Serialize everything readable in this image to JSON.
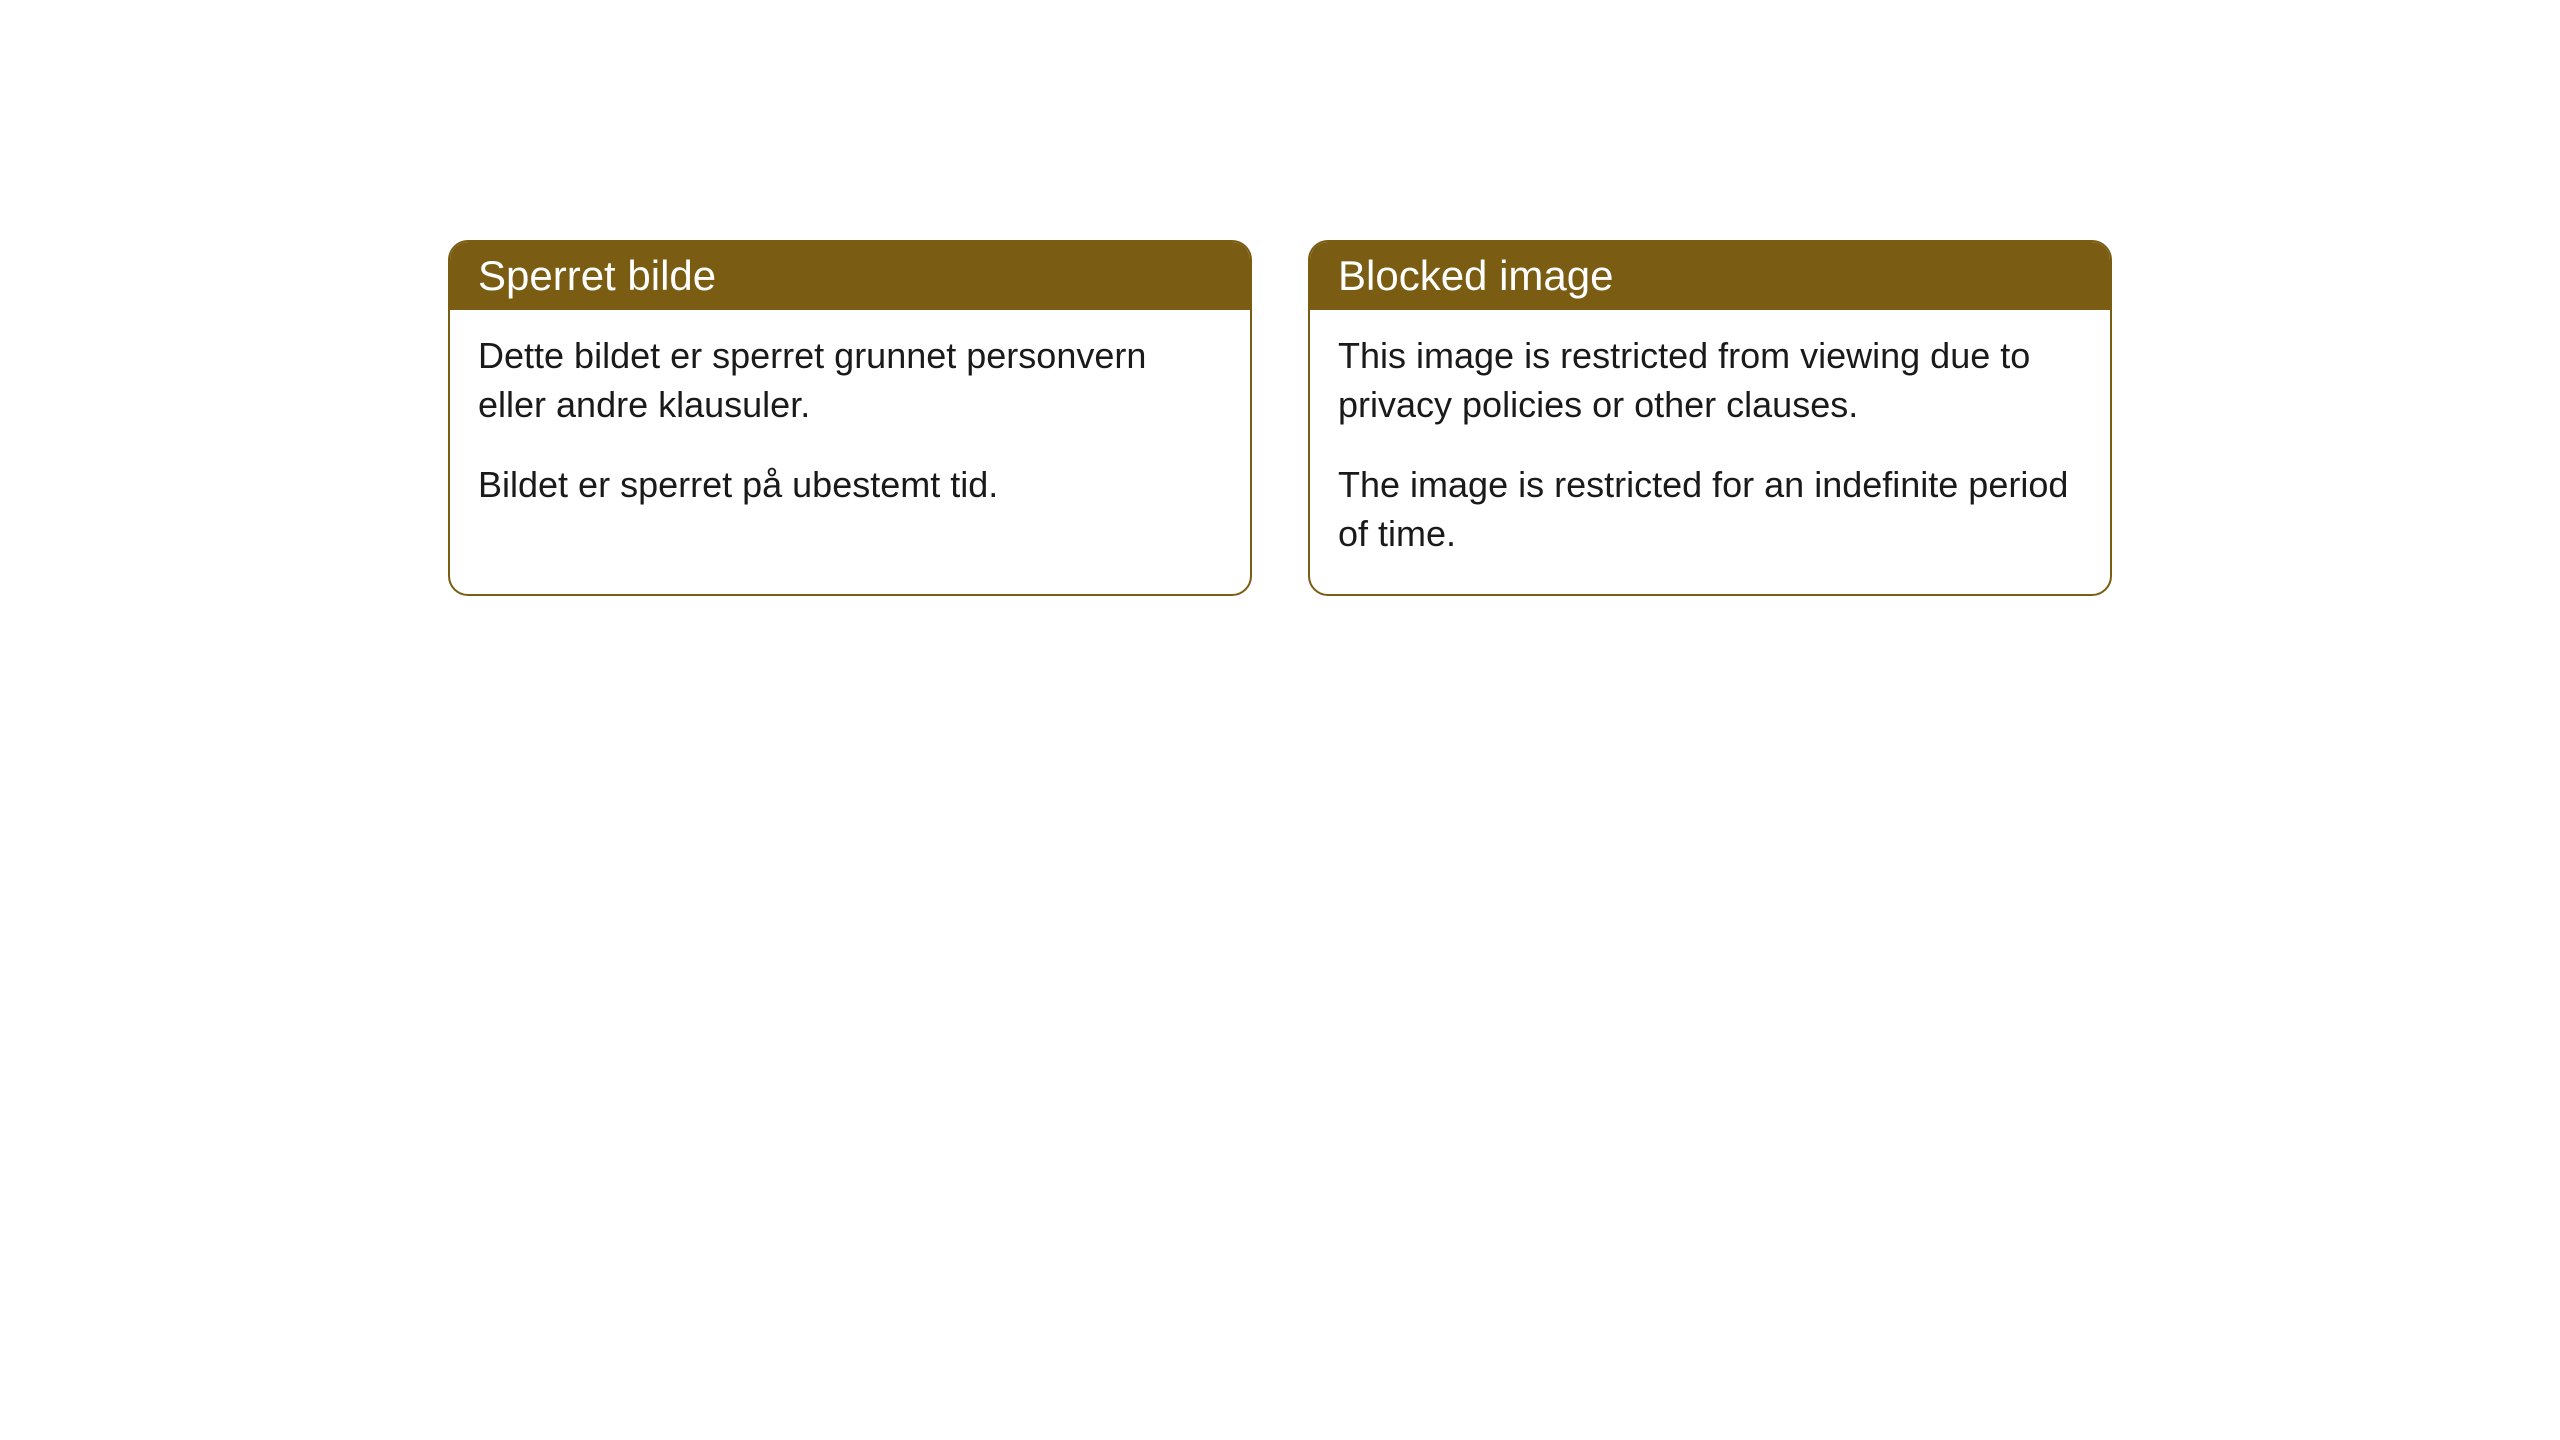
{
  "cards": [
    {
      "title": "Sperret bilde",
      "paragraph1": "Dette bildet er sperret grunnet personvern eller andre klausuler.",
      "paragraph2": "Bildet er sperret på ubestemt tid."
    },
    {
      "title": "Blocked image",
      "paragraph1": "This image is restricted from viewing due to privacy policies or other clauses.",
      "paragraph2": "The image is restricted for an indefinite period of time."
    }
  ],
  "style": {
    "header_background": "#7a5c12",
    "header_text_color": "#ffffff",
    "border_color": "#7a5c12",
    "body_text_color": "#1a1a1a",
    "card_background": "#ffffff",
    "page_background": "#ffffff",
    "border_radius": 20,
    "header_fontsize": 42,
    "body_fontsize": 36
  }
}
